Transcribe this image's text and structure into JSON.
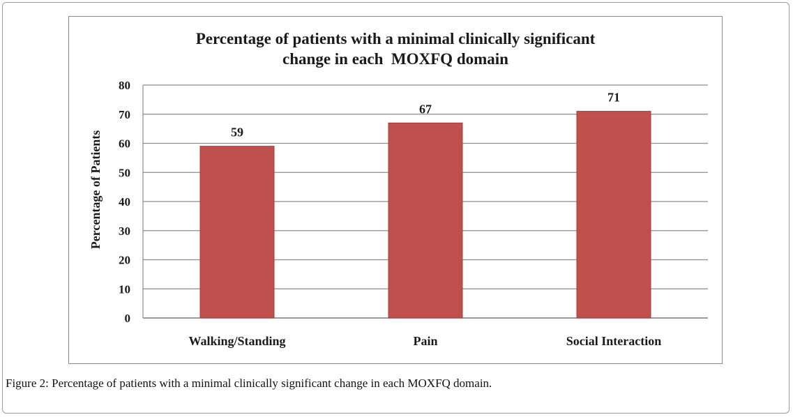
{
  "chart_data": {
    "type": "bar",
    "title_lines": [
      "Percentage of patients with a minimal clinically significant",
      "change in each  MOXFQ domain"
    ],
    "xlabel": "",
    "ylabel": "Percentage of Patients",
    "categories": [
      "Walking/Standing",
      "Pain",
      "Social Interaction"
    ],
    "values": [
      59,
      67,
      71
    ],
    "data_labels": [
      "59",
      "67",
      "71"
    ],
    "ylim": [
      0,
      80
    ],
    "yticks": [
      0,
      10,
      20,
      30,
      40,
      50,
      60,
      70,
      80
    ],
    "ytick_labels": [
      "0",
      "10",
      "20",
      "30",
      "40",
      "50",
      "60",
      "70",
      "80"
    ],
    "grid": true,
    "legend": "none",
    "bar_color": "#c0504d",
    "bar_edge_color": "#a23f3c"
  },
  "caption": {
    "label": "Figure 2:",
    "text": " Percentage of patients with a minimal clinically significant change in each MOXFQ domain."
  }
}
